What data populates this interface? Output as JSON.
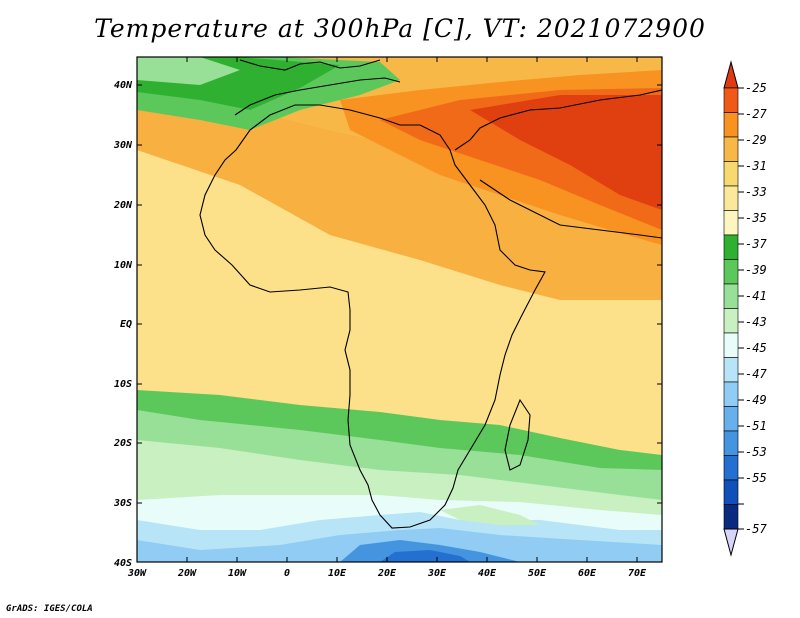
{
  "title": "Temperature at 300hPa [C], VT: 2021072900",
  "credit": "GrADS: IGES/COLA",
  "map": {
    "variable": "Temperature",
    "level": "300hPa",
    "units": "C",
    "valid_time": "2021072900",
    "lon_range": [
      -30,
      75
    ],
    "lat_range": [
      -40,
      45
    ],
    "lon_ticks": [
      "30W",
      "20W",
      "10W",
      "0",
      "10E",
      "20E",
      "30E",
      "40E",
      "50E",
      "60E",
      "70E"
    ],
    "lat_ticks": [
      "40N",
      "30N",
      "20N",
      "10N",
      "EQ",
      "10S",
      "20S",
      "30S",
      "40S"
    ]
  },
  "colorbar": {
    "labels": [
      "-25",
      "-27",
      "-29",
      "-31",
      "-33",
      "-35",
      "-37",
      "-39",
      "-41",
      "-43",
      "-45",
      "-47",
      "-49",
      "-51",
      "-53",
      "-55",
      "-57"
    ],
    "colors": [
      "#e03a10",
      "#f05a18",
      "#f89220",
      "#f8b848",
      "#f8d870",
      "#fce89a",
      "#fdf6c0",
      "#30b030",
      "#5cc85c",
      "#98e098",
      "#c8f0c0",
      "#e8fcfa",
      "#b8e4f8",
      "#90ccf4",
      "#68b0ec",
      "#4494e0",
      "#2470d0",
      "#1050b8",
      "#0a2a80",
      "#d8d4f8"
    ]
  }
}
